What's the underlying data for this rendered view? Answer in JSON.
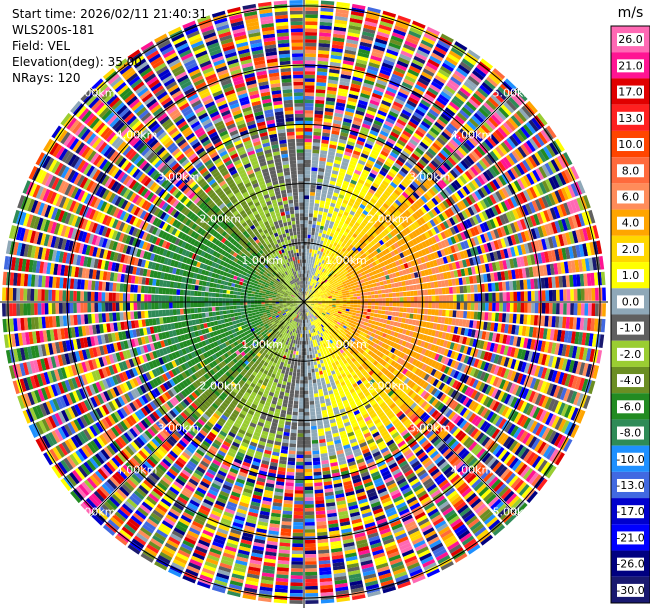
{
  "info": {
    "start_time": "Start time: 2026/02/11 21:40:31",
    "instrument": "WLS200s-181",
    "field": "Field: VEL",
    "elevation": "Elevation(deg): 35.00",
    "nrays": "NRays: 120"
  },
  "chart_data": {
    "type": "heatmap",
    "projection": "polar-ppi",
    "field": "VEL",
    "unit": "m/s",
    "nrays": 120,
    "elevation_deg": 35.0,
    "range_km_max": 5.1,
    "ring_labels": [
      "1.00km",
      "2.00km",
      "3.00km",
      "4.00km",
      "5.00km"
    ],
    "ring_ranges_km": [
      1,
      2,
      3,
      4,
      5
    ],
    "colorbar": {
      "unit": "m/s",
      "ticks": [
        "26.0",
        "21.0",
        "17.0",
        "13.0",
        "10.0",
        "8.0",
        "6.0",
        "4.0",
        "2.0",
        "1.0",
        "0.0",
        "-1.0",
        "-2.0",
        "-4.0",
        "-6.0",
        "-8.0",
        "-10.0",
        "-13.0",
        "-17.0",
        "-21.0",
        "-26.0",
        "-30.0"
      ],
      "colors": [
        "#ff69b4",
        "#ff1493",
        "#e00000",
        "#ff2020",
        "#ff4500",
        "#ff6a3c",
        "#ff8c5a",
        "#ffa500",
        "#ffd700",
        "#ffff00",
        "#8fa8b8",
        "#606060",
        "#9acd32",
        "#6b8e23",
        "#228b22",
        "#2e8b57",
        "#1e90ff",
        "#4169e1",
        "#0000cd",
        "#0000ff",
        "#000080",
        "#191970"
      ],
      "vmin": -30.0,
      "vmax": 30.0
    },
    "structure": {
      "clean_range_km": 2.3,
      "noise_start_km": 2.9,
      "inner_field": "positive (orange/red) to the east, negative (green/blue) to the west, near-zero yellow/grey along the north and south",
      "outer_field": "random noise colours beyond about 3 km"
    }
  }
}
